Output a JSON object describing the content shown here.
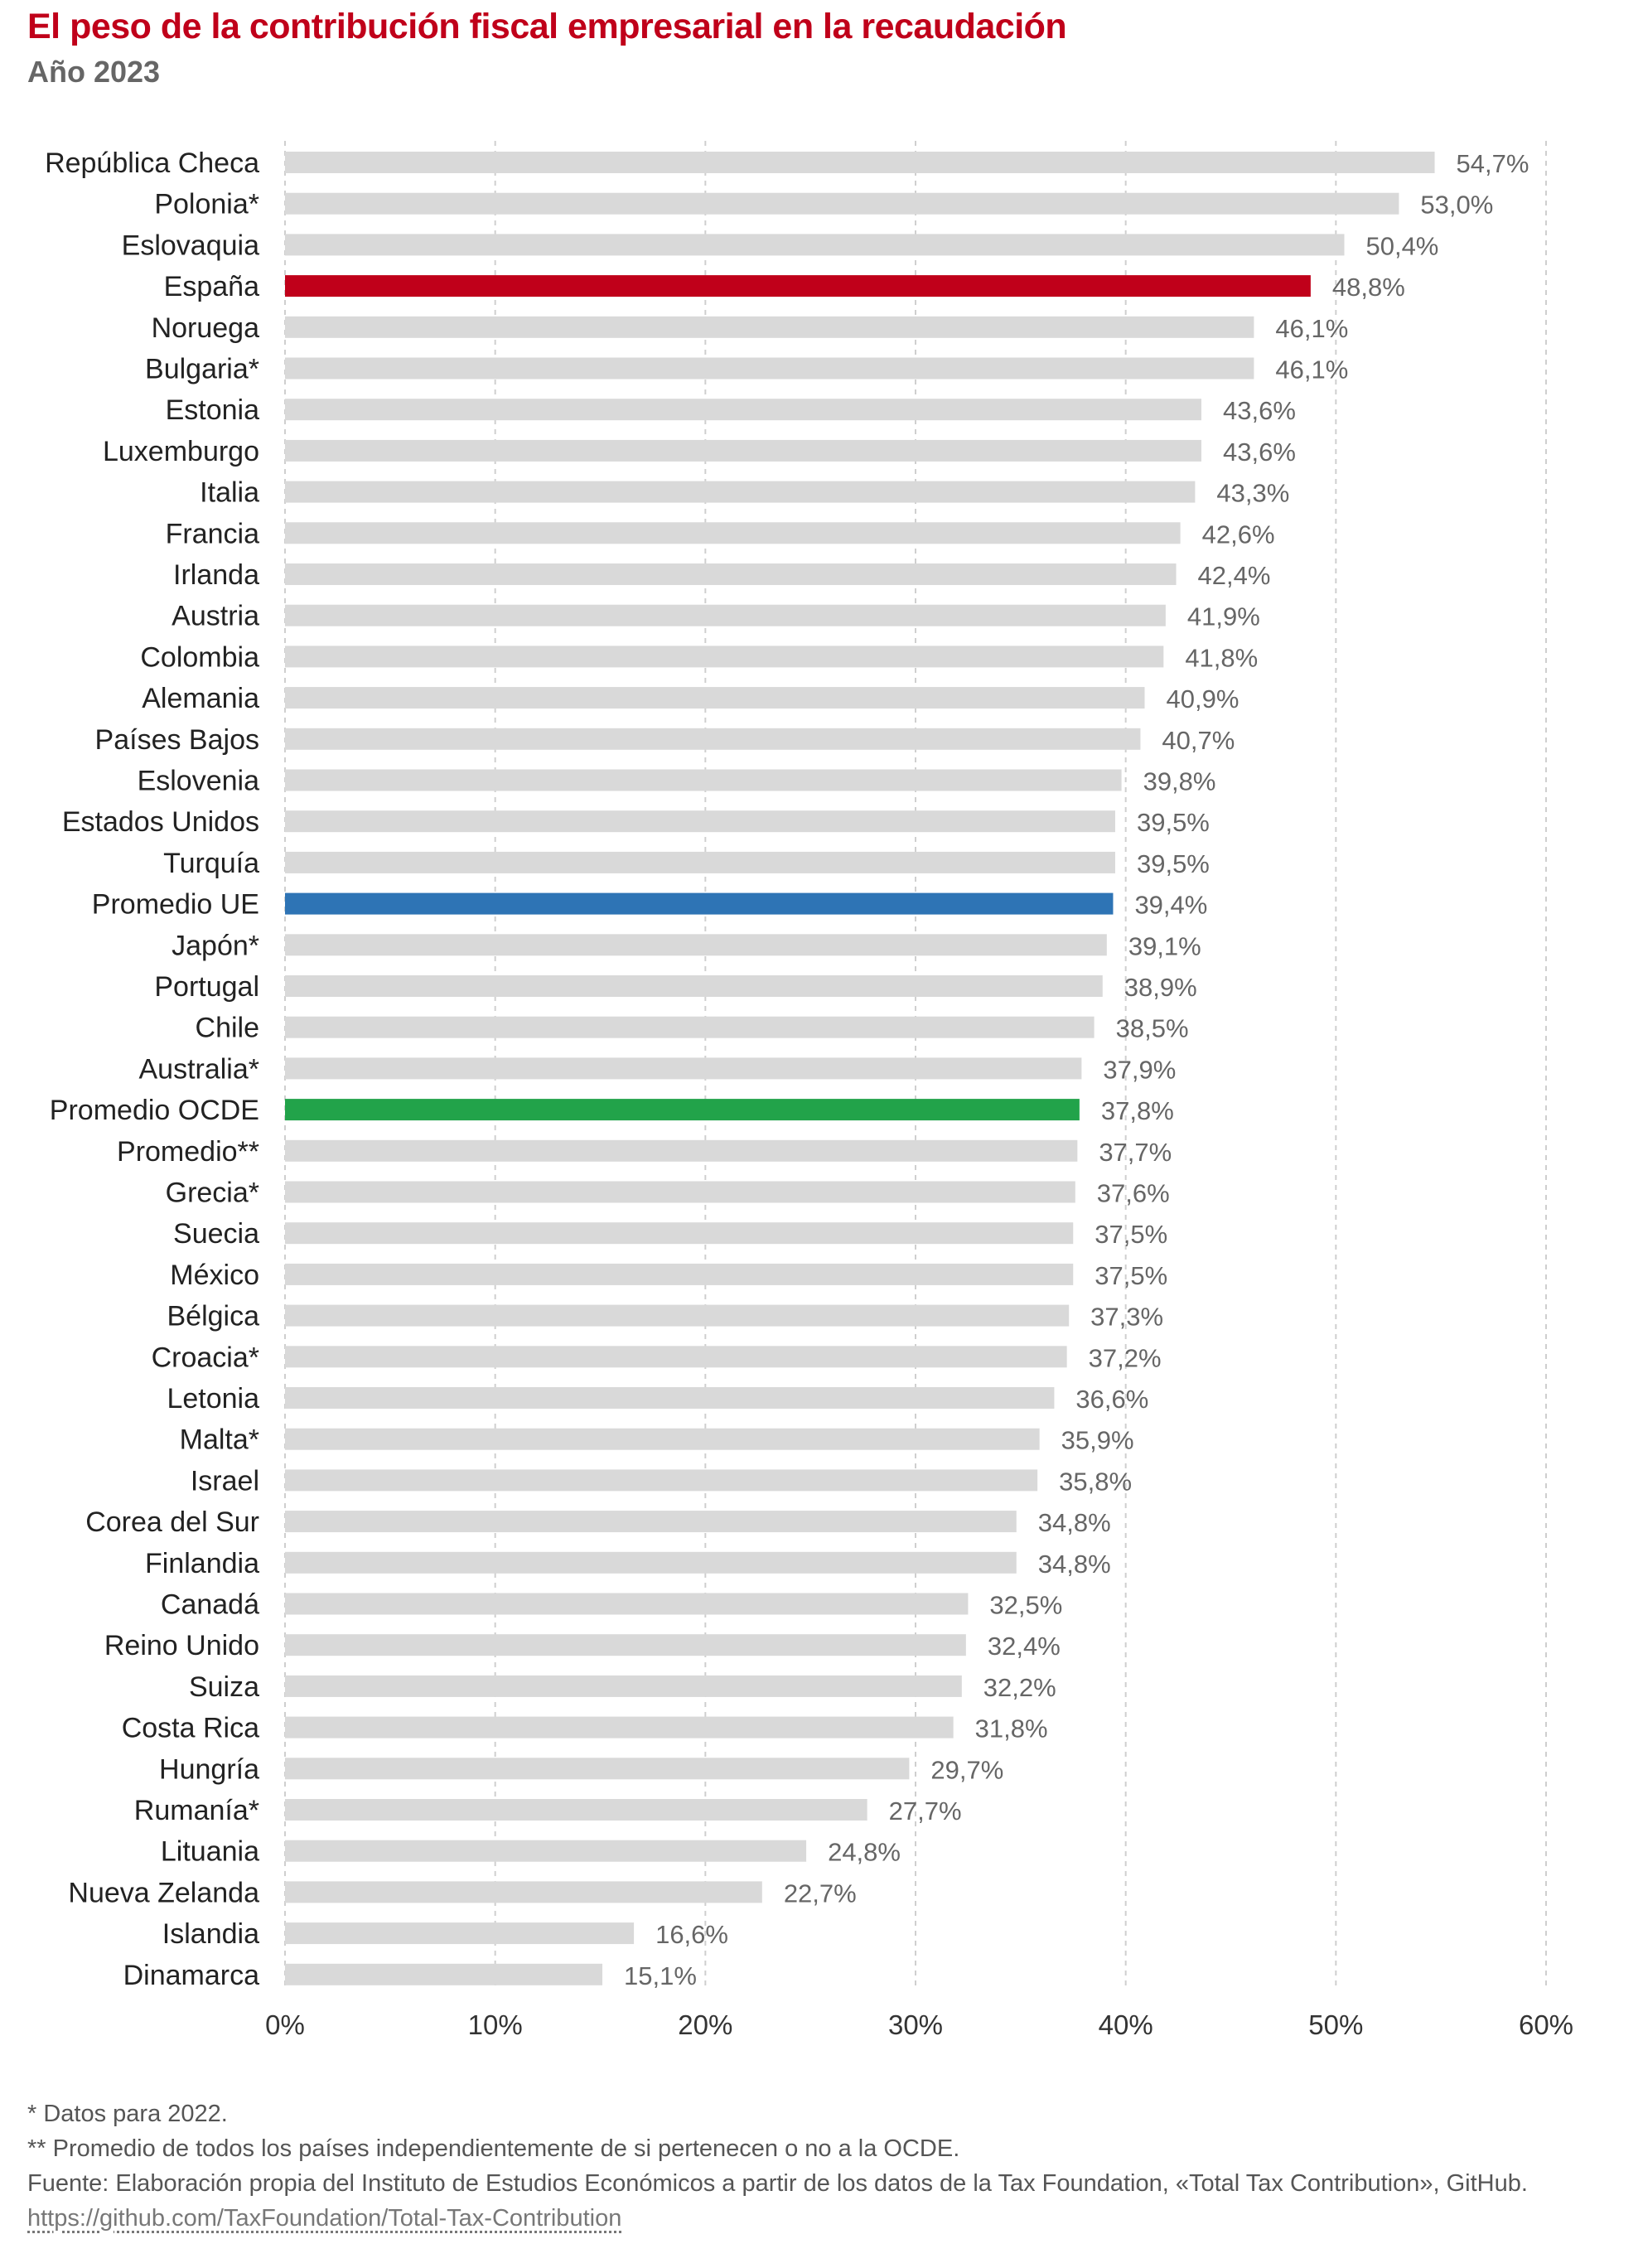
{
  "title": "El peso de la contribución fiscal empresarial en la recaudación",
  "subtitle": "Año 2023",
  "chart_data": {
    "type": "bar",
    "orientation": "horizontal",
    "title": "El peso de la contribución fiscal empresarial en la recaudación",
    "subtitle": "Año 2023",
    "categories": [
      "República Checa",
      "Polonia*",
      "Eslovaquia",
      "España",
      "Noruega",
      "Bulgaria*",
      "Estonia",
      "Luxemburgo",
      "Italia",
      "Francia",
      "Irlanda",
      "Austria",
      "Colombia",
      "Alemania",
      "Países Bajos",
      "Eslovenia",
      "Estados Unidos",
      "Turquía",
      "Promedio UE",
      "Japón*",
      "Portugal",
      "Chile",
      "Australia*",
      "Promedio OCDE",
      "Promedio**",
      "Grecia*",
      "Suecia",
      "México",
      "Bélgica",
      "Croacia*",
      "Letonia",
      "Malta*",
      "Israel",
      "Corea del Sur",
      "Finlandia",
      "Canadá",
      "Reino Unido",
      "Suiza",
      "Costa Rica",
      "Hungría",
      "Rumanía*",
      "Lituania",
      "Nueva Zelanda",
      "Islandia",
      "Dinamarca"
    ],
    "values": [
      54.7,
      53.0,
      50.4,
      48.8,
      46.1,
      46.1,
      43.6,
      43.6,
      43.3,
      42.6,
      42.4,
      41.9,
      41.8,
      40.9,
      40.7,
      39.8,
      39.5,
      39.5,
      39.4,
      39.1,
      38.9,
      38.5,
      37.9,
      37.8,
      37.7,
      37.6,
      37.5,
      37.5,
      37.3,
      37.2,
      36.6,
      35.9,
      35.8,
      34.8,
      34.8,
      32.5,
      32.4,
      32.2,
      31.8,
      29.7,
      27.7,
      24.8,
      22.7,
      16.6,
      15.1
    ],
    "value_labels": [
      "54,7%",
      "53,0%",
      "50,4%",
      "48,8%",
      "46,1%",
      "46,1%",
      "43,6%",
      "43,6%",
      "43,3%",
      "42,6%",
      "42,4%",
      "41,9%",
      "41,8%",
      "40,9%",
      "40,7%",
      "39,8%",
      "39,5%",
      "39,5%",
      "39,4%",
      "39,1%",
      "38,9%",
      "38,5%",
      "37,9%",
      "37,8%",
      "37,7%",
      "37,6%",
      "37,5%",
      "37,5%",
      "37,3%",
      "37,2%",
      "36,6%",
      "35,9%",
      "35,8%",
      "34,8%",
      "34,8%",
      "32,5%",
      "32,4%",
      "32,2%",
      "31,8%",
      "29,7%",
      "27,7%",
      "24,8%",
      "22,7%",
      "16,6%",
      "15,1%"
    ],
    "highlights": {
      "España": "#c0001a",
      "Promedio UE": "#2e74b5",
      "Promedio OCDE": "#22a34a"
    },
    "default_color": "#d9d9d9",
    "xlim": [
      0,
      60
    ],
    "xticks": [
      0,
      10,
      20,
      30,
      40,
      50,
      60
    ],
    "xtick_labels": [
      "0%",
      "10%",
      "20%",
      "30%",
      "40%",
      "50%",
      "60%"
    ],
    "grid": "vertical dashed",
    "xlabel": "",
    "ylabel": ""
  },
  "notes": {
    "note1": "* Datos para 2022.",
    "note2": "** Promedio de todos los países independientemente de si pertenecen o no a la OCDE.",
    "source": "Fuente: Elaboración propia del Instituto de Estudios Económicos a partir de los datos de la Tax Foundation, «Total Tax Contribution», GitHub.",
    "link": "https://github.com/TaxFoundation/Total-Tax-Contribution"
  }
}
